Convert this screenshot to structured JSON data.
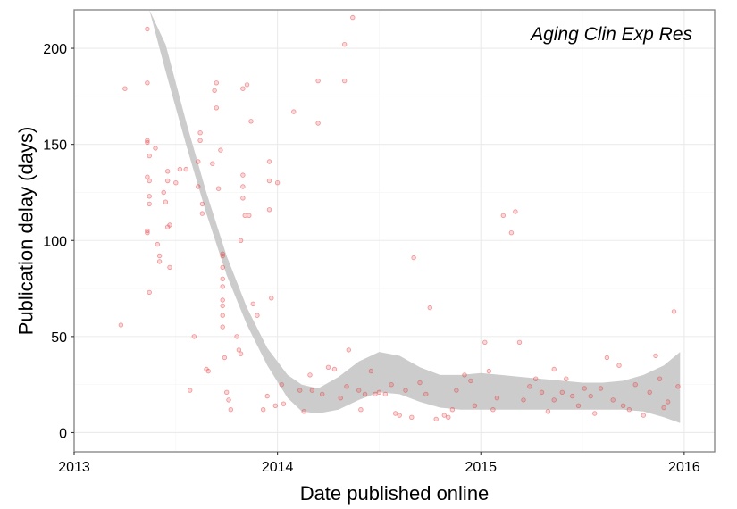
{
  "chart_data": {
    "type": "scatter",
    "title": "Aging Clin Exp Res",
    "xlabel": "Date published online",
    "ylabel": "Publication delay (days)",
    "xlim": [
      2013.0,
      2016.15
    ],
    "ylim": [
      -10,
      220
    ],
    "x_ticks": [
      2013,
      2014,
      2015,
      2016
    ],
    "x_tick_labels": [
      "2013",
      "2014",
      "2015",
      "2016"
    ],
    "y_ticks": [
      0,
      50,
      100,
      150,
      200
    ],
    "y_tick_labels": [
      "0",
      "50",
      "100",
      "150",
      "200"
    ],
    "grid": true,
    "legend": "none",
    "colors": {
      "points": "#e8393a",
      "smooth_band": "#c9c9c9",
      "grid_major": "#ebebeb",
      "grid_minor": "#f5f5f5",
      "panel_border": "#8a8a8a"
    },
    "smooth_band": [
      {
        "x": 2013.37,
        "lower": 220,
        "upper": 220
      },
      {
        "x": 2013.45,
        "lower": 188,
        "upper": 202
      },
      {
        "x": 2013.55,
        "lower": 150,
        "upper": 162
      },
      {
        "x": 2013.65,
        "lower": 114,
        "upper": 125
      },
      {
        "x": 2013.75,
        "lower": 82,
        "upper": 92
      },
      {
        "x": 2013.85,
        "lower": 56,
        "upper": 65
      },
      {
        "x": 2013.95,
        "lower": 35,
        "upper": 44
      },
      {
        "x": 2014.05,
        "lower": 18,
        "upper": 30
      },
      {
        "x": 2014.12,
        "lower": 11,
        "upper": 25
      },
      {
        "x": 2014.2,
        "lower": 10,
        "upper": 23
      },
      {
        "x": 2014.3,
        "lower": 12,
        "upper": 29
      },
      {
        "x": 2014.4,
        "lower": 17,
        "upper": 37
      },
      {
        "x": 2014.5,
        "lower": 21,
        "upper": 42
      },
      {
        "x": 2014.6,
        "lower": 20,
        "upper": 40
      },
      {
        "x": 2014.7,
        "lower": 16,
        "upper": 34
      },
      {
        "x": 2014.8,
        "lower": 13,
        "upper": 30
      },
      {
        "x": 2014.9,
        "lower": 12,
        "upper": 30
      },
      {
        "x": 2015.0,
        "lower": 12,
        "upper": 31
      },
      {
        "x": 2015.1,
        "lower": 12,
        "upper": 30
      },
      {
        "x": 2015.2,
        "lower": 12,
        "upper": 29
      },
      {
        "x": 2015.3,
        "lower": 12,
        "upper": 28
      },
      {
        "x": 2015.4,
        "lower": 12,
        "upper": 27
      },
      {
        "x": 2015.5,
        "lower": 12,
        "upper": 26
      },
      {
        "x": 2015.6,
        "lower": 12,
        "upper": 26
      },
      {
        "x": 2015.7,
        "lower": 12,
        "upper": 27
      },
      {
        "x": 2015.8,
        "lower": 11,
        "upper": 30
      },
      {
        "x": 2015.9,
        "lower": 8,
        "upper": 35
      },
      {
        "x": 2015.98,
        "lower": 5,
        "upper": 42
      }
    ],
    "points": [
      [
        2013.23,
        56
      ],
      [
        2013.25,
        179
      ],
      [
        2013.36,
        210
      ],
      [
        2013.36,
        182
      ],
      [
        2013.36,
        152
      ],
      [
        2013.36,
        151
      ],
      [
        2013.37,
        144
      ],
      [
        2013.36,
        133
      ],
      [
        2013.37,
        131
      ],
      [
        2013.37,
        123
      ],
      [
        2013.37,
        119
      ],
      [
        2013.36,
        105
      ],
      [
        2013.36,
        104
      ],
      [
        2013.37,
        73
      ],
      [
        2013.4,
        148
      ],
      [
        2013.41,
        98
      ],
      [
        2013.42,
        92
      ],
      [
        2013.42,
        89
      ],
      [
        2013.44,
        125
      ],
      [
        2013.45,
        120
      ],
      [
        2013.46,
        136
      ],
      [
        2013.46,
        131
      ],
      [
        2013.47,
        108
      ],
      [
        2013.46,
        107
      ],
      [
        2013.47,
        86
      ],
      [
        2013.5,
        130
      ],
      [
        2013.52,
        137
      ],
      [
        2013.55,
        137
      ],
      [
        2013.57,
        22
      ],
      [
        2013.59,
        50
      ],
      [
        2013.61,
        141
      ],
      [
        2013.61,
        128
      ],
      [
        2013.62,
        156
      ],
      [
        2013.62,
        152
      ],
      [
        2013.63,
        119
      ],
      [
        2013.63,
        114
      ],
      [
        2013.65,
        33
      ],
      [
        2013.66,
        32
      ],
      [
        2013.68,
        140
      ],
      [
        2013.69,
        178
      ],
      [
        2013.7,
        182
      ],
      [
        2013.7,
        169
      ],
      [
        2013.71,
        127
      ],
      [
        2013.72,
        147
      ],
      [
        2013.73,
        93
      ],
      [
        2013.73,
        92
      ],
      [
        2013.73,
        86
      ],
      [
        2013.73,
        80
      ],
      [
        2013.73,
        76
      ],
      [
        2013.73,
        69
      ],
      [
        2013.73,
        66
      ],
      [
        2013.73,
        61
      ],
      [
        2013.73,
        55
      ],
      [
        2013.74,
        39
      ],
      [
        2013.75,
        21
      ],
      [
        2013.76,
        17
      ],
      [
        2013.77,
        12
      ],
      [
        2013.8,
        50
      ],
      [
        2013.81,
        43
      ],
      [
        2013.82,
        41
      ],
      [
        2013.82,
        100
      ],
      [
        2013.83,
        128
      ],
      [
        2013.83,
        134
      ],
      [
        2013.83,
        122
      ],
      [
        2013.84,
        113
      ],
      [
        2013.83,
        179
      ],
      [
        2013.85,
        181
      ],
      [
        2013.86,
        113
      ],
      [
        2013.87,
        162
      ],
      [
        2013.88,
        67
      ],
      [
        2013.9,
        61
      ],
      [
        2013.93,
        12
      ],
      [
        2013.95,
        19
      ],
      [
        2013.96,
        141
      ],
      [
        2013.96,
        131
      ],
      [
        2013.96,
        116
      ],
      [
        2013.97,
        70
      ],
      [
        2013.99,
        14
      ],
      [
        2014.0,
        130
      ],
      [
        2014.02,
        25
      ],
      [
        2014.03,
        15
      ],
      [
        2014.08,
        167
      ],
      [
        2014.11,
        22
      ],
      [
        2014.13,
        11
      ],
      [
        2014.16,
        30
      ],
      [
        2014.17,
        22
      ],
      [
        2014.2,
        183
      ],
      [
        2014.2,
        161
      ],
      [
        2014.22,
        20
      ],
      [
        2014.25,
        34
      ],
      [
        2014.28,
        33
      ],
      [
        2014.31,
        18
      ],
      [
        2014.33,
        202
      ],
      [
        2014.33,
        183
      ],
      [
        2014.34,
        24
      ],
      [
        2014.35,
        43
      ],
      [
        2014.37,
        216
      ],
      [
        2014.4,
        22
      ],
      [
        2014.41,
        12
      ],
      [
        2014.43,
        20
      ],
      [
        2014.46,
        32
      ],
      [
        2014.48,
        20
      ],
      [
        2014.5,
        21
      ],
      [
        2014.53,
        20
      ],
      [
        2014.56,
        25
      ],
      [
        2014.58,
        10
      ],
      [
        2014.6,
        9
      ],
      [
        2014.63,
        22
      ],
      [
        2014.66,
        8
      ],
      [
        2014.67,
        91
      ],
      [
        2014.7,
        26
      ],
      [
        2014.73,
        20
      ],
      [
        2014.75,
        65
      ],
      [
        2014.78,
        7
      ],
      [
        2014.82,
        9
      ],
      [
        2014.84,
        8
      ],
      [
        2014.86,
        12
      ],
      [
        2014.88,
        22
      ],
      [
        2014.92,
        30
      ],
      [
        2014.95,
        27
      ],
      [
        2014.97,
        14
      ],
      [
        2015.02,
        47
      ],
      [
        2015.04,
        32
      ],
      [
        2015.06,
        12
      ],
      [
        2015.08,
        18
      ],
      [
        2015.11,
        113
      ],
      [
        2015.15,
        104
      ],
      [
        2015.17,
        115
      ],
      [
        2015.19,
        47
      ],
      [
        2015.21,
        17
      ],
      [
        2015.24,
        24
      ],
      [
        2015.27,
        28
      ],
      [
        2015.3,
        21
      ],
      [
        2015.33,
        11
      ],
      [
        2015.36,
        17
      ],
      [
        2015.36,
        33
      ],
      [
        2015.4,
        21
      ],
      [
        2015.42,
        28
      ],
      [
        2015.45,
        19
      ],
      [
        2015.48,
        14
      ],
      [
        2015.51,
        23
      ],
      [
        2015.54,
        19
      ],
      [
        2015.56,
        10
      ],
      [
        2015.59,
        23
      ],
      [
        2015.62,
        39
      ],
      [
        2015.65,
        17
      ],
      [
        2015.68,
        35
      ],
      [
        2015.7,
        14
      ],
      [
        2015.73,
        12
      ],
      [
        2015.76,
        25
      ],
      [
        2015.8,
        9
      ],
      [
        2015.83,
        21
      ],
      [
        2015.86,
        40
      ],
      [
        2015.88,
        28
      ],
      [
        2015.9,
        13
      ],
      [
        2015.92,
        16
      ],
      [
        2015.95,
        63
      ],
      [
        2015.97,
        24
      ]
    ]
  }
}
